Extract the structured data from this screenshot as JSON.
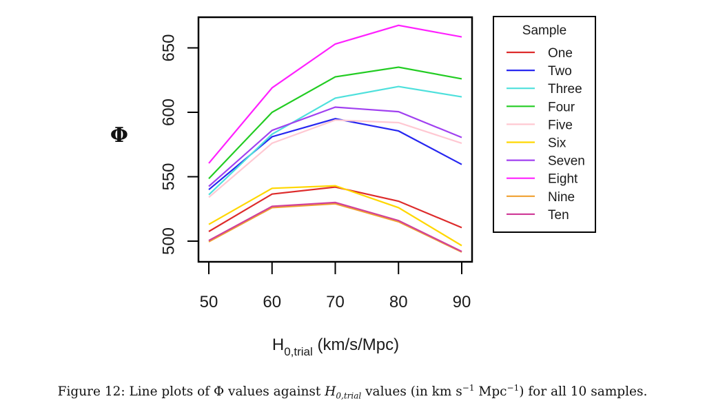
{
  "chart_data": {
    "type": "line",
    "title": "",
    "xlabel": "H0,trial (km/s/Mpc)",
    "xlabel_main": "H",
    "xlabel_sub": "0,trial",
    "xlabel_rest": " (km/s/Mpc)",
    "ylabel": "Φ",
    "x": [
      50,
      60,
      70,
      80,
      90
    ],
    "xticks": [
      50,
      60,
      70,
      80,
      90
    ],
    "yticks": [
      500,
      550,
      600,
      650
    ],
    "xlim": [
      50,
      90
    ],
    "ylim": [
      490,
      668
    ],
    "grid": false,
    "legend": {
      "title": "Sample",
      "placement": "right"
    },
    "series": [
      {
        "name": "One",
        "color": "#dd2b2b",
        "values": [
          507.5,
          536.5,
          542.0,
          531.0,
          510.5
        ]
      },
      {
        "name": "Two",
        "color": "#2626f0",
        "values": [
          540.0,
          581.0,
          595.0,
          585.5,
          559.5
        ]
      },
      {
        "name": "Three",
        "color": "#4ee0dc",
        "values": [
          536.0,
          583.0,
          611.0,
          620.0,
          612.0
        ]
      },
      {
        "name": "Four",
        "color": "#22cc22",
        "values": [
          548.5,
          600.0,
          627.5,
          635.0,
          626.0
        ]
      },
      {
        "name": "Five",
        "color": "#ffc8d2",
        "values": [
          534.0,
          576.0,
          594.0,
          592.0,
          576.0
        ]
      },
      {
        "name": "Six",
        "color": "#ffd700",
        "values": [
          513.0,
          541.0,
          543.0,
          526.0,
          496.5
        ]
      },
      {
        "name": "Seven",
        "color": "#a040f0",
        "values": [
          542.5,
          586.0,
          604.0,
          600.5,
          580.5
        ]
      },
      {
        "name": "Eight",
        "color": "#ff20ff",
        "values": [
          560.5,
          619.0,
          653.0,
          667.5,
          658.5
        ]
      },
      {
        "name": "Nine",
        "color": "#f0a030",
        "values": [
          499.5,
          526.0,
          529.0,
          515.0,
          491.5
        ]
      },
      {
        "name": "Ten",
        "color": "#d0409a",
        "values": [
          500.5,
          527.0,
          530.0,
          516.0,
          492.0
        ]
      }
    ]
  },
  "caption": {
    "prefix": "Figure 12: Line plots of Φ values against ",
    "var_main": "H",
    "var_sub": "0,trial",
    "middle": " values (in km s",
    "sup1": "−1",
    "middle2": " Mpc",
    "sup2": "−1",
    "suffix": ") for all 10 samples."
  }
}
